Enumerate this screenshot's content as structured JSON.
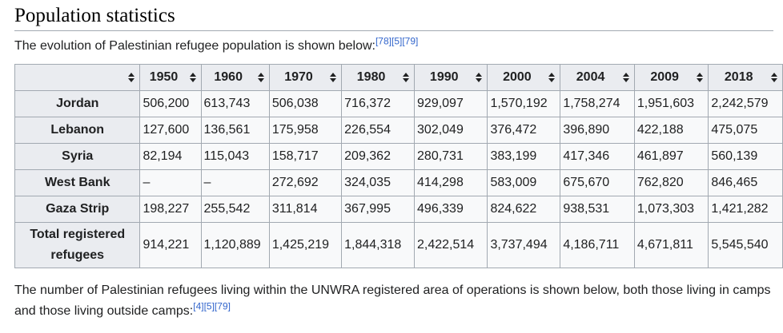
{
  "section": {
    "title": "Population statistics",
    "intro": "The evolution of Palestinian refugee population is shown below:",
    "intro_refs": "[78][5][79]",
    "outro": "The number of Palestinian refugees living within the UNWRA registered area of operations is shown below, both those living in camps and those living outside camps:",
    "outro_refs": "[4][5][79]"
  },
  "table": {
    "columns": [
      "1950",
      "1960",
      "1970",
      "1980",
      "1990",
      "2000",
      "2004",
      "2009",
      "2018"
    ],
    "rows": [
      {
        "label": "Jordan",
        "values": [
          "506,200",
          "613,743",
          "506,038",
          "716,372",
          "929,097",
          "1,570,192",
          "1,758,274",
          "1,951,603",
          "2,242,579"
        ]
      },
      {
        "label": "Lebanon",
        "values": [
          "127,600",
          "136,561",
          "175,958",
          "226,554",
          "302,049",
          "376,472",
          "396,890",
          "422,188",
          "475,075"
        ]
      },
      {
        "label": "Syria",
        "values": [
          "82,194",
          "115,043",
          "158,717",
          "209,362",
          "280,731",
          "383,199",
          "417,346",
          "461,897",
          "560,139"
        ]
      },
      {
        "label": "West Bank",
        "values": [
          "–",
          "–",
          "272,692",
          "324,035",
          "414,298",
          "583,009",
          "675,670",
          "762,820",
          "846,465"
        ]
      },
      {
        "label": "Gaza Strip",
        "values": [
          "198,227",
          "255,542",
          "311,814",
          "367,995",
          "496,339",
          "824,622",
          "938,531",
          "1,073,303",
          "1,421,282"
        ]
      },
      {
        "label": "Total registered refugees",
        "values": [
          "914,221",
          "1,120,889",
          "1,425,219",
          "1,844,318",
          "2,422,514",
          "3,737,494",
          "4,186,711",
          "4,671,811",
          "5,545,540"
        ]
      }
    ]
  },
  "icons": {
    "sort": "sort-arrows-icon"
  },
  "colors": {
    "link": "#3366cc",
    "header_bg": "#eaecf0",
    "cell_bg": "#f8f9fa",
    "border": "#a2a9b1"
  }
}
